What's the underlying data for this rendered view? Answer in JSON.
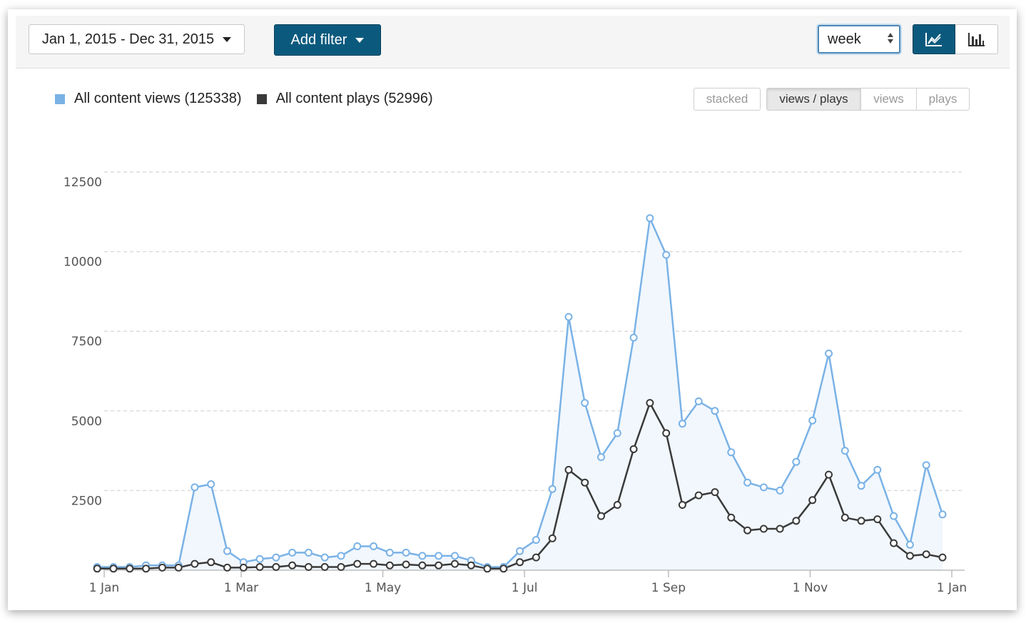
{
  "toolbar": {
    "date_range": "Jan 1, 2015 - Dec 31, 2015",
    "add_filter": "Add filter",
    "period": "week",
    "views": [
      "line-chart",
      "bar-chart"
    ],
    "active_view": "line-chart"
  },
  "legend": {
    "views": "All content views (125338)",
    "plays": "All content plays (52996)"
  },
  "modes": {
    "stacked": "stacked",
    "views_plays": "views / plays",
    "views": "views",
    "plays": "plays",
    "active": "views / plays"
  },
  "colors": {
    "views": "#7ab2e6",
    "plays": "#3a3a3a",
    "views_fill": "#f1f7fd",
    "accent": "#0b5a7e"
  },
  "chart_data": {
    "type": "line",
    "x_unit": "days since 1 Jan 2015",
    "x_start": -3,
    "x_step": 7,
    "xlim": [
      0,
      365
    ],
    "ylim": [
      0,
      12500
    ],
    "yticks": [
      2500,
      5000,
      7500,
      10000,
      12500
    ],
    "xticks": [
      {
        "label": "1 Jan",
        "x": 0
      },
      {
        "label": "1 Mar",
        "x": 59
      },
      {
        "label": "1 May",
        "x": 120
      },
      {
        "label": "1 Jul",
        "x": 181
      },
      {
        "label": "1 Sep",
        "x": 243
      },
      {
        "label": "1 Nov",
        "x": 304
      },
      {
        "label": "1 Jan",
        "x": 365
      }
    ],
    "grid": true,
    "legend_position": "top-left",
    "series": [
      {
        "name": "All content views",
        "total": 125338,
        "values": [
          100,
          100,
          100,
          150,
          150,
          150,
          2600,
          2700,
          600,
          250,
          350,
          400,
          550,
          550,
          400,
          450,
          750,
          750,
          550,
          550,
          450,
          450,
          450,
          300,
          100,
          100,
          600,
          950,
          2550,
          7950,
          5250,
          3550,
          4300,
          7300,
          11050,
          9900,
          4600,
          5300,
          5000,
          3700,
          2750,
          2600,
          2500,
          3400,
          4700,
          6800,
          3750,
          2650,
          3150,
          1700,
          800,
          3300,
          1750
        ]
      },
      {
        "name": "All content plays",
        "total": 52996,
        "values": [
          50,
          50,
          50,
          50,
          80,
          80,
          200,
          250,
          80,
          80,
          100,
          100,
          150,
          100,
          100,
          100,
          200,
          200,
          150,
          180,
          150,
          150,
          200,
          150,
          50,
          50,
          250,
          400,
          1000,
          3150,
          2750,
          1700,
          2050,
          3800,
          5250,
          4300,
          2050,
          2350,
          2450,
          1650,
          1250,
          1300,
          1300,
          1550,
          2200,
          3000,
          1650,
          1550,
          1600,
          850,
          450,
          500,
          400
        ]
      }
    ]
  }
}
